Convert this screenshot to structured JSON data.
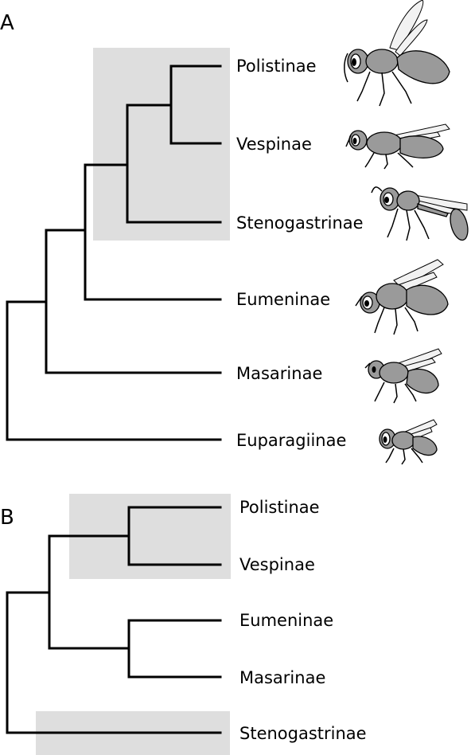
{
  "panel_a": {
    "letter": "A",
    "taxa": [
      "Polistinae",
      "Vespinae",
      "Stenogastrinae",
      "Eumeninae",
      "Masarinae",
      "Euparagiinae"
    ],
    "icons": [
      "wasp-polistinae-icon",
      "wasp-vespinae-icon",
      "wasp-stenogastrinae-icon",
      "wasp-eumeninae-icon",
      "wasp-masarinae-icon",
      "wasp-euparagiinae-icon"
    ]
  },
  "panel_b": {
    "letter": "B",
    "taxa": [
      "Polistinae",
      "Vespinae",
      "Eumeninae",
      "Masarinae",
      "Stenogastrinae"
    ]
  },
  "colors": {
    "shade": "#dedede",
    "line": "#000000",
    "wasp": "#9a9a9a"
  }
}
